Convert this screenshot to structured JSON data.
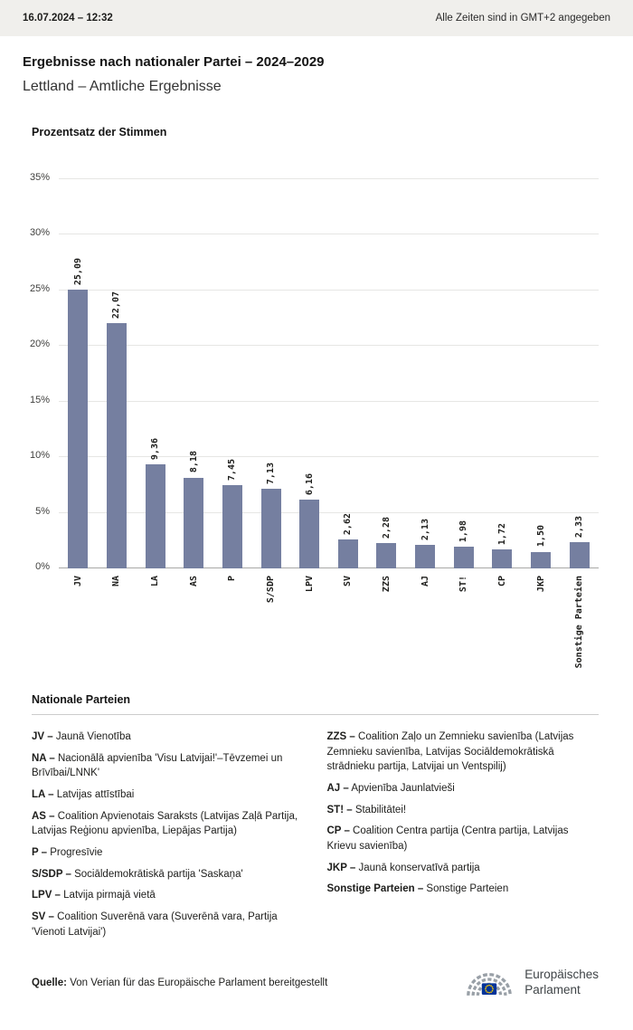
{
  "topbar": {
    "datetime": "16.07.2024 – 12:32",
    "timezone_note": "Alle Zeiten sind in GMT+2 angegeben"
  },
  "page": {
    "title": "Ergebnisse nach nationaler Partei – 2024–2029",
    "subtitle": "Lettland – Amtliche Ergebnisse"
  },
  "chart_data": {
    "type": "bar",
    "title": "Prozentsatz der Stimmen",
    "categories": [
      "JV",
      "NA",
      "LA",
      "AS",
      "P",
      "S/SDP",
      "LPV",
      "SV",
      "ZZS",
      "AJ",
      "ST!",
      "CP",
      "JKP",
      "Sonstige Parteien"
    ],
    "values": [
      25.09,
      22.07,
      9.36,
      8.18,
      7.45,
      7.13,
      6.16,
      2.62,
      2.28,
      2.13,
      1.98,
      1.72,
      1.5,
      2.33
    ],
    "value_labels": [
      "25,09",
      "22,07",
      "9,36",
      "8,18",
      "7,45",
      "7,13",
      "6,16",
      "2,62",
      "2,28",
      "2,13",
      "1,98",
      "1,72",
      "1,50",
      "2,33"
    ],
    "xlabel": "",
    "ylabel": "",
    "ylim": [
      0,
      35
    ],
    "yticks": [
      0,
      5,
      10,
      15,
      20,
      25,
      30,
      35
    ],
    "ytick_labels": [
      "0%",
      "5%",
      "10%",
      "15%",
      "20%",
      "25%",
      "30%",
      "35%"
    ],
    "bar_color": "#757fa0",
    "grid": true,
    "legend_position": "none"
  },
  "legend": {
    "heading": "Nationale Parteien",
    "columns": [
      [
        {
          "label": "JV –",
          "desc": "Jaunā Vienotība"
        },
        {
          "label": "NA –",
          "desc": "Nacionālā apvienība 'Visu Latvijai!'–Tēvzemei un Brīvībai/LNNK'"
        },
        {
          "label": "LA –",
          "desc": "Latvijas attīstībai"
        },
        {
          "label": "AS –",
          "desc": "Coalition Apvienotais Saraksts (Latvijas Zaļā Partija, Latvijas Reģionu apvienība, Liepājas Partija)"
        },
        {
          "label": "P –",
          "desc": "Progresīvie"
        },
        {
          "label": "S/SDP –",
          "desc": "Sociāldemokrātiskā partija 'Saskaņa'"
        },
        {
          "label": "LPV –",
          "desc": "Latvija pirmajā vietā"
        },
        {
          "label": "SV –",
          "desc": "Coalition Suverēnā vara (Suverēnā vara, Partija 'Vienoti Latvijai')"
        }
      ],
      [
        {
          "label": "ZZS –",
          "desc": "Coalition Zaļo un Zemnieku savienība (Latvijas Zemnieku savienība, Latvijas Sociāldemokrātiskā strādnieku partija, Latvijai un Ventspilij)"
        },
        {
          "label": "AJ –",
          "desc": "Apvienība Jaunlatvieši"
        },
        {
          "label": "ST! –",
          "desc": "Stabilitātei!"
        },
        {
          "label": "CP –",
          "desc": "Coalition Centra partija (Centra partija, Latvijas Krievu savienība)"
        },
        {
          "label": "JKP –",
          "desc": "Jaunā konservatīvā partija"
        },
        {
          "label": "Sonstige Parteien –",
          "desc": "Sonstige Parteien"
        }
      ]
    ]
  },
  "footer": {
    "source_label": "Quelle:",
    "source_text": "Von Verian für das Europäische Parlament bereitgestellt",
    "logo": {
      "line1": "Europäisches",
      "line2": "Parlament"
    }
  }
}
